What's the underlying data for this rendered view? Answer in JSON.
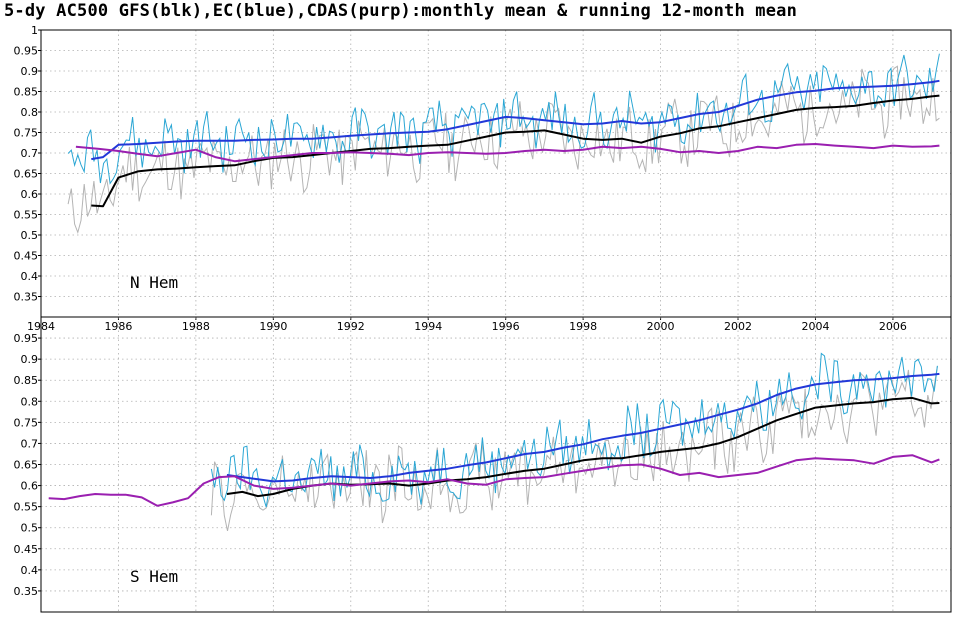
{
  "title": "5-dy AC500 GFS(blk),EC(blue),CDAS(purp):monthly mean & running 12-month mean",
  "colors": {
    "gfs_running": "#000000",
    "ec_running": "#2238d8",
    "cdas_running": "#9a1fb0",
    "gfs_monthly": "#b4b4b4",
    "ec_monthly": "#2aa6d4",
    "grid": "#b0b0b0"
  },
  "chart_data": [
    {
      "type": "line",
      "label": "N Hem",
      "xlim": [
        1984,
        2007.5
      ],
      "ylim": [
        0.3,
        1.0
      ],
      "y_ticks": [
        "0.35",
        "0.4",
        "0.45",
        "0.5",
        "0.55",
        "0.6",
        "0.65",
        "0.7",
        "0.75",
        "0.8",
        "0.85",
        "0.9",
        "0.95",
        "1"
      ],
      "x_ticks": [
        "1984",
        "1986",
        "1988",
        "1990",
        "1992",
        "1994",
        "1996",
        "1998",
        "2000",
        "2002",
        "2004",
        "2006"
      ],
      "grid": true,
      "series": [
        {
          "style": "running-gfs",
          "x": [
            1985.3,
            1985.6,
            1986.0,
            1986.5,
            1987.0,
            1987.5,
            1988.0,
            1988.5,
            1989.0,
            1989.5,
            1990.0,
            1990.5,
            1991.0,
            1991.5,
            1992.0,
            1992.5,
            1993.0,
            1993.5,
            1994.0,
            1994.5,
            1995.0,
            1995.5,
            1996.0,
            1996.5,
            1997.0,
            1997.5,
            1998.0,
            1998.5,
            1999.0,
            1999.5,
            2000.0,
            2000.5,
            2001.0,
            2001.5,
            2002.0,
            2002.5,
            2003.0,
            2003.5,
            2004.0,
            2004.5,
            2005.0,
            2005.5,
            2006.0,
            2006.5,
            2007.0,
            2007.2
          ],
          "y": [
            0.572,
            0.57,
            0.64,
            0.655,
            0.66,
            0.662,
            0.665,
            0.668,
            0.67,
            0.68,
            0.688,
            0.69,
            0.695,
            0.7,
            0.705,
            0.71,
            0.712,
            0.715,
            0.718,
            0.72,
            0.73,
            0.74,
            0.75,
            0.752,
            0.755,
            0.745,
            0.735,
            0.732,
            0.735,
            0.725,
            0.74,
            0.748,
            0.76,
            0.765,
            0.775,
            0.785,
            0.795,
            0.805,
            0.81,
            0.812,
            0.815,
            0.822,
            0.828,
            0.832,
            0.838,
            0.84
          ]
        },
        {
          "style": "running-ec",
          "x": [
            1985.3,
            1985.6,
            1986.0,
            1986.5,
            1987.0,
            1987.5,
            1988.0,
            1988.5,
            1989.0,
            1989.5,
            1990.0,
            1990.5,
            1991.0,
            1991.5,
            1992.0,
            1992.5,
            1993.0,
            1993.5,
            1994.0,
            1994.5,
            1995.0,
            1995.5,
            1996.0,
            1996.5,
            1997.0,
            1997.5,
            1998.0,
            1998.5,
            1999.0,
            1999.5,
            2000.0,
            2000.5,
            2001.0,
            2001.5,
            2002.0,
            2002.5,
            2003.0,
            2003.5,
            2004.0,
            2004.5,
            2005.0,
            2005.5,
            2006.0,
            2006.5,
            2007.0,
            2007.2
          ],
          "y": [
            0.685,
            0.69,
            0.72,
            0.722,
            0.725,
            0.728,
            0.73,
            0.73,
            0.73,
            0.732,
            0.733,
            0.735,
            0.735,
            0.738,
            0.742,
            0.745,
            0.748,
            0.75,
            0.752,
            0.758,
            0.768,
            0.778,
            0.788,
            0.785,
            0.78,
            0.775,
            0.77,
            0.772,
            0.778,
            0.772,
            0.775,
            0.785,
            0.795,
            0.8,
            0.815,
            0.83,
            0.84,
            0.848,
            0.852,
            0.858,
            0.86,
            0.862,
            0.864,
            0.868,
            0.873,
            0.876
          ]
        },
        {
          "style": "running-cdas",
          "x": [
            1984.9,
            1985.5,
            1986.0,
            1986.5,
            1987.0,
            1987.5,
            1988.0,
            1988.5,
            1989.0,
            1989.5,
            1990.0,
            1990.5,
            1991.0,
            1991.5,
            1992.0,
            1992.5,
            1993.0,
            1993.5,
            1994.0,
            1994.5,
            1995.0,
            1995.5,
            1996.0,
            1996.5,
            1997.0,
            1997.5,
            1998.0,
            1998.5,
            1999.0,
            1999.5,
            2000.0,
            2000.5,
            2001.0,
            2001.5,
            2002.0,
            2002.5,
            2003.0,
            2003.5,
            2004.0,
            2004.5,
            2005.0,
            2005.5,
            2006.0,
            2006.5,
            2007.0,
            2007.2
          ],
          "y": [
            0.715,
            0.71,
            0.705,
            0.698,
            0.692,
            0.7,
            0.708,
            0.69,
            0.68,
            0.685,
            0.69,
            0.695,
            0.7,
            0.7,
            0.702,
            0.7,
            0.698,
            0.695,
            0.7,
            0.702,
            0.7,
            0.698,
            0.7,
            0.705,
            0.708,
            0.705,
            0.708,
            0.715,
            0.712,
            0.715,
            0.71,
            0.702,
            0.705,
            0.7,
            0.705,
            0.715,
            0.712,
            0.72,
            0.722,
            0.718,
            0.715,
            0.712,
            0.718,
            0.715,
            0.716,
            0.718
          ]
        }
      ]
    },
    {
      "type": "line",
      "label": "S Hem",
      "xlim": [
        1984,
        2007.5
      ],
      "ylim": [
        0.3,
        1.0
      ],
      "y_ticks": [
        "0.35",
        "0.4",
        "0.45",
        "0.5",
        "0.55",
        "0.6",
        "0.65",
        "0.7",
        "0.75",
        "0.8",
        "0.85",
        "0.9",
        "0.95"
      ],
      "x_ticks": [],
      "grid": true,
      "series": [
        {
          "style": "running-gfs",
          "x": [
            1988.8,
            1989.2,
            1989.6,
            1990.0,
            1990.5,
            1991.0,
            1991.5,
            1992.0,
            1992.5,
            1993.0,
            1993.5,
            1994.0,
            1994.5,
            1995.0,
            1995.5,
            1996.0,
            1996.5,
            1997.0,
            1997.5,
            1998.0,
            1998.5,
            1999.0,
            1999.5,
            2000.0,
            2000.5,
            2001.0,
            2001.5,
            2002.0,
            2002.5,
            2003.0,
            2003.5,
            2004.0,
            2004.5,
            2005.0,
            2005.5,
            2006.0,
            2006.5,
            2007.0,
            2007.2
          ],
          "y": [
            0.58,
            0.585,
            0.575,
            0.58,
            0.592,
            0.6,
            0.605,
            0.602,
            0.603,
            0.605,
            0.6,
            0.605,
            0.612,
            0.615,
            0.62,
            0.628,
            0.635,
            0.64,
            0.65,
            0.66,
            0.665,
            0.665,
            0.672,
            0.68,
            0.685,
            0.69,
            0.7,
            0.715,
            0.735,
            0.755,
            0.77,
            0.785,
            0.79,
            0.795,
            0.798,
            0.805,
            0.808,
            0.795,
            0.796
          ]
        },
        {
          "style": "running-ec",
          "x": [
            1988.8,
            1989.2,
            1989.6,
            1990.0,
            1990.5,
            1991.0,
            1991.5,
            1992.0,
            1992.5,
            1993.0,
            1993.5,
            1994.0,
            1994.5,
            1995.0,
            1995.5,
            1996.0,
            1996.5,
            1997.0,
            1997.5,
            1998.0,
            1998.5,
            1999.0,
            1999.5,
            2000.0,
            2000.5,
            2001.0,
            2001.5,
            2002.0,
            2002.5,
            2003.0,
            2003.5,
            2004.0,
            2004.5,
            2005.0,
            2005.5,
            2006.0,
            2006.5,
            2007.0,
            2007.2
          ],
          "y": [
            0.625,
            0.62,
            0.615,
            0.61,
            0.612,
            0.618,
            0.622,
            0.62,
            0.618,
            0.622,
            0.63,
            0.635,
            0.64,
            0.648,
            0.655,
            0.665,
            0.675,
            0.68,
            0.69,
            0.698,
            0.71,
            0.718,
            0.725,
            0.735,
            0.745,
            0.755,
            0.768,
            0.78,
            0.795,
            0.815,
            0.83,
            0.84,
            0.845,
            0.85,
            0.852,
            0.855,
            0.86,
            0.863,
            0.865
          ]
        },
        {
          "style": "running-cdas",
          "x": [
            1984.2,
            1984.6,
            1985.0,
            1985.4,
            1985.8,
            1986.2,
            1986.6,
            1987.0,
            1987.4,
            1987.8,
            1988.2,
            1988.6,
            1989.0,
            1989.5,
            1990.0,
            1990.5,
            1991.0,
            1991.5,
            1992.0,
            1992.5,
            1993.0,
            1993.5,
            1994.0,
            1994.5,
            1995.0,
            1995.5,
            1996.0,
            1996.5,
            1997.0,
            1997.5,
            1998.0,
            1998.5,
            1999.0,
            1999.5,
            2000.0,
            2000.5,
            2001.0,
            2001.5,
            2002.0,
            2002.5,
            2003.0,
            2003.5,
            2004.0,
            2004.5,
            2005.0,
            2005.5,
            2006.0,
            2006.5,
            2007.0,
            2007.2
          ],
          "y": [
            0.57,
            0.568,
            0.575,
            0.58,
            0.578,
            0.578,
            0.572,
            0.552,
            0.56,
            0.57,
            0.605,
            0.62,
            0.622,
            0.6,
            0.592,
            0.595,
            0.6,
            0.605,
            0.6,
            0.605,
            0.61,
            0.612,
            0.608,
            0.615,
            0.605,
            0.602,
            0.615,
            0.618,
            0.62,
            0.628,
            0.635,
            0.642,
            0.648,
            0.65,
            0.64,
            0.625,
            0.63,
            0.62,
            0.625,
            0.63,
            0.645,
            0.66,
            0.665,
            0.662,
            0.66,
            0.652,
            0.668,
            0.672,
            0.655,
            0.662
          ]
        }
      ]
    }
  ]
}
